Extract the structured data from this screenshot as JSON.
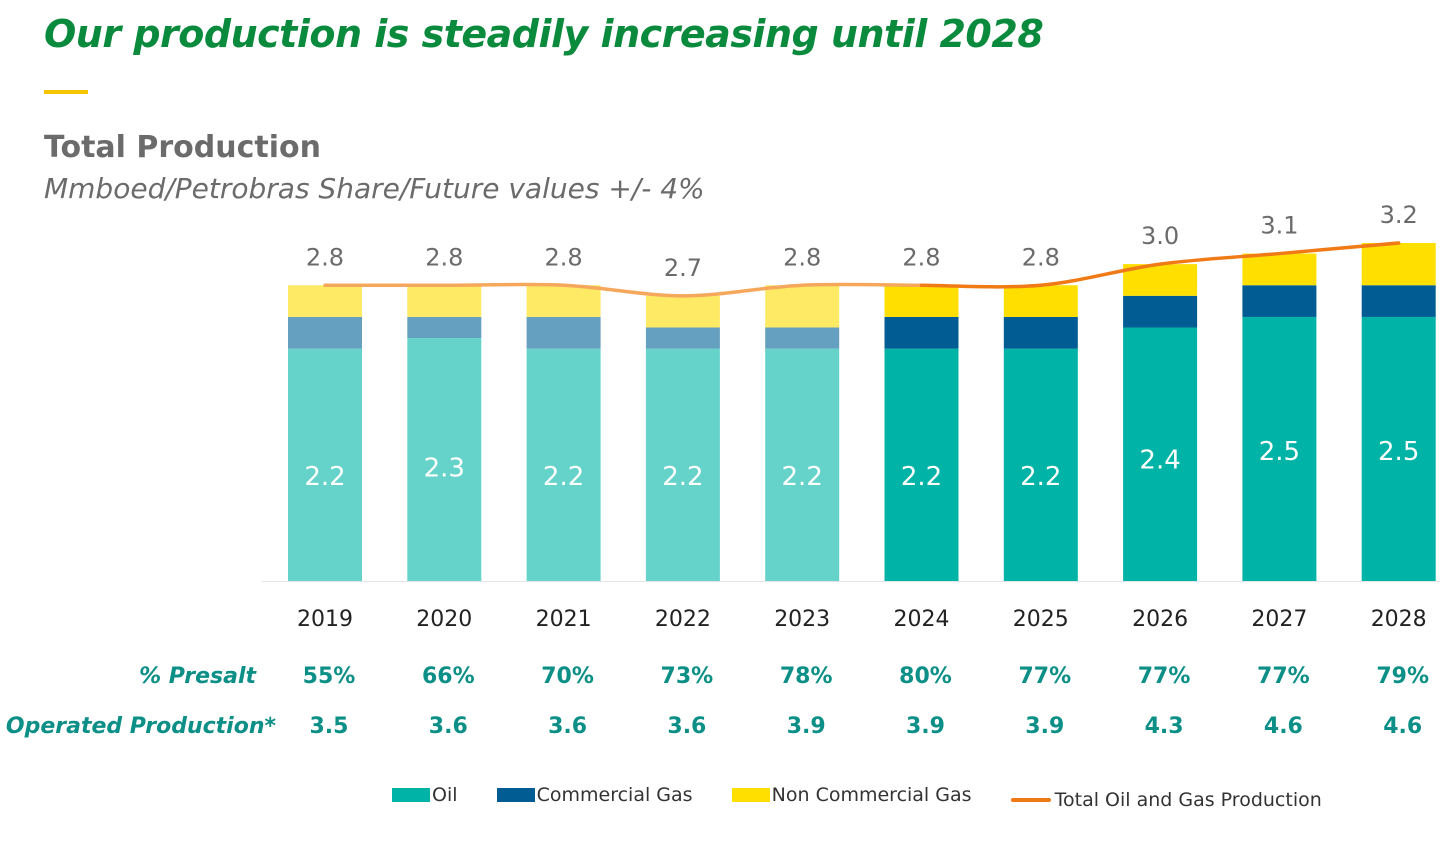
{
  "header": {
    "title": "Our production is steadily increasing until 2028",
    "chart_title": "Total Production",
    "chart_subtitle": "Mmboed/Petrobras Share/Future values +/- 4%"
  },
  "colors": {
    "oil": "#00b3a7",
    "oil_past": "#66d3cb",
    "commercial_gas": "#005c93",
    "commercial_gas_past": "#66a0c0",
    "non_commercial_gas": "#ffdf00",
    "non_commercial_gas_past": "#ffea66",
    "total_line": "#f07a16",
    "total_line_past": "#f5a85c",
    "label_gray": "#6b6b6b",
    "teal_text": "#0b8f86"
  },
  "chart_data": {
    "type": "bar",
    "stacked": true,
    "categories": [
      "2019",
      "2020",
      "2021",
      "2022",
      "2023",
      "2024",
      "2025",
      "2026",
      "2027",
      "2028"
    ],
    "series": [
      {
        "name": "Oil",
        "values": [
          2.2,
          2.3,
          2.2,
          2.2,
          2.2,
          2.2,
          2.2,
          2.4,
          2.5,
          2.5
        ]
      },
      {
        "name": "Commercial Gas",
        "values": [
          0.3,
          0.2,
          0.3,
          0.2,
          0.2,
          0.3,
          0.3,
          0.3,
          0.3,
          0.3
        ]
      },
      {
        "name": "Non Commercial Gas",
        "values": [
          0.3,
          0.3,
          0.3,
          0.3,
          0.4,
          0.3,
          0.3,
          0.3,
          0.3,
          0.4
        ]
      }
    ],
    "line": {
      "name": "Total Oil and Gas Production",
      "values": [
        2.8,
        2.8,
        2.8,
        2.7,
        2.8,
        2.8,
        2.8,
        3.0,
        3.1,
        3.2
      ]
    },
    "oil_labels": [
      "2.2",
      "2.3",
      "2.2",
      "2.2",
      "2.2",
      "2.2",
      "2.2",
      "2.4",
      "2.5",
      "2.5"
    ],
    "total_labels": [
      "2.8",
      "2.8",
      "2.8",
      "2.7",
      "2.8",
      "2.8",
      "2.8",
      "3.0",
      "3.1",
      "3.2"
    ],
    "historical_years": [
      "2019",
      "2020",
      "2021",
      "2022",
      "2023"
    ],
    "ylim": [
      0,
      3.35
    ],
    "grid": false,
    "legend_position": "bottom"
  },
  "rows": {
    "presalt": {
      "label": "% Presalt",
      "values": [
        "55%",
        "66%",
        "70%",
        "73%",
        "78%",
        "80%",
        "77%",
        "77%",
        "77%",
        "79%"
      ]
    },
    "operated": {
      "label": "Operated Production*",
      "values": [
        "3.5",
        "3.6",
        "3.6",
        "3.6",
        "3.9",
        "3.9",
        "3.9",
        "4.3",
        "4.6",
        "4.6"
      ]
    }
  },
  "legend": {
    "oil": "Oil",
    "commercial_gas": "Commercial Gas",
    "non_commercial_gas": "Non Commercial Gas",
    "total": "Total Oil and Gas Production"
  }
}
